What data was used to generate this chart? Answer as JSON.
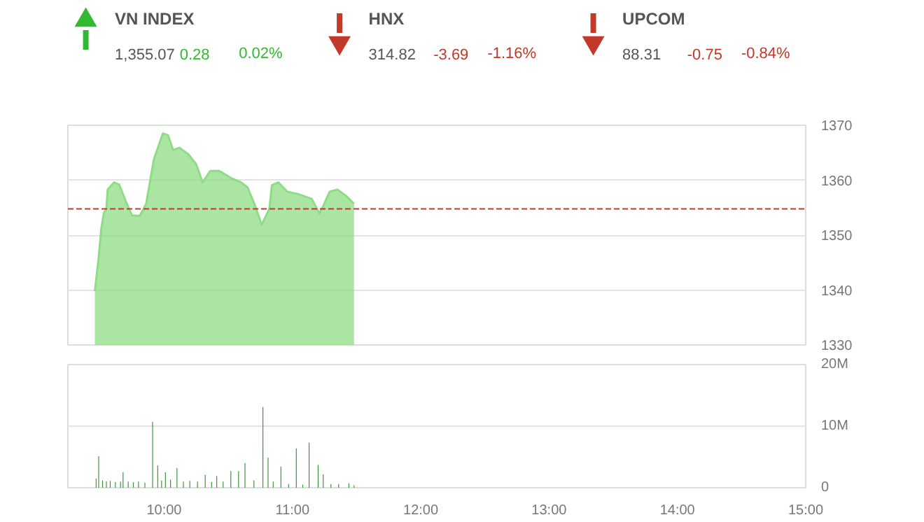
{
  "chart_data": [
    {
      "type": "other",
      "categories": [
        "VN INDEX",
        "HNX",
        "UPCOM"
      ],
      "series": [
        {
          "values": [
            1355.07,
            314.82,
            88.31
          ],
          "value_labels": [
            "1,355.07",
            "314.82",
            "88.31"
          ],
          "color": "#555555"
        },
        {
          "values": [
            0.28,
            -3.69,
            -0.75
          ],
          "value_labels": [
            "0.28",
            "-3.69",
            "-0.75"
          ],
          "colors": [
            "#33b833",
            "#c0392b",
            "#c0392b"
          ]
        },
        {
          "values": [
            0.02,
            -1.16,
            -0.84
          ],
          "value_labels": [
            "0.02%",
            "-1.16%",
            "-0.84%"
          ],
          "colors": [
            "#33b833",
            "#c0392b",
            "#c0392b"
          ]
        }
      ]
    },
    {
      "type": "area",
      "x": [
        9.46,
        9.49,
        9.51,
        9.53,
        9.55,
        9.56,
        9.61,
        9.65,
        9.7,
        9.75,
        9.81,
        9.86,
        9.92,
        9.99,
        10.03,
        10.07,
        10.12,
        10.19,
        10.25,
        10.3,
        10.36,
        10.43,
        10.52,
        10.6,
        10.65,
        10.71,
        10.76,
        10.82,
        10.84,
        10.89,
        10.96,
        11.04,
        11.15,
        11.18,
        11.21,
        11.24,
        11.29,
        11.35,
        11.42,
        11.48
      ],
      "series": [
        {
          "color": "#8fdc86",
          "values": [
            1339.8,
            1346.0,
            1351.1,
            1354.0,
            1354.8,
            1358.3,
            1359.6,
            1359.2,
            1356.2,
            1353.6,
            1353.5,
            1355.7,
            1363.8,
            1368.5,
            1368.2,
            1365.5,
            1365.9,
            1364.7,
            1362.9,
            1359.6,
            1361.7,
            1361.7,
            1360.4,
            1359.6,
            1358.7,
            1355.3,
            1351.9,
            1354.8,
            1359.1,
            1359.6,
            1357.9,
            1357.5,
            1356.6,
            1355.3,
            1354.0,
            1355.3,
            1357.9,
            1358.3,
            1357.1,
            1355.7
          ]
        }
      ],
      "xlim": [
        9.25,
        15
      ],
      "xticks": [
        {
          "value": 10,
          "label": null
        },
        {
          "value": 11,
          "label": null
        },
        {
          "value": 12,
          "label": null
        },
        {
          "value": 13,
          "label": null
        },
        {
          "value": 14,
          "label": null
        },
        {
          "value": 15,
          "label": null
        }
      ],
      "ylim": [
        1330,
        1370
      ],
      "yticks": [
        1330,
        1340,
        1350,
        1360,
        1370
      ],
      "grid": "y",
      "tick_labels": "y",
      "ref_lines": [
        {
          "axis": "y",
          "value": 1354.79,
          "color": "#c0392b",
          "line_style": "dashed"
        }
      ]
    },
    {
      "type": "bar",
      "x": [
        9.47,
        9.49,
        9.52,
        9.55,
        9.58,
        9.62,
        9.66,
        9.68,
        9.72,
        9.76,
        9.8,
        9.85,
        9.91,
        9.95,
        9.98,
        10.01,
        10.05,
        10.1,
        10.15,
        10.2,
        10.26,
        10.32,
        10.37,
        10.41,
        10.46,
        10.52,
        10.58,
        10.63,
        10.7,
        10.77,
        10.81,
        10.85,
        10.91,
        10.97,
        11.03,
        11.08,
        11.13,
        11.2,
        11.24,
        11.3,
        11.36,
        11.44,
        11.48
      ],
      "series": [
        {
          "color": "#2e8b2e",
          "values": [
            1.5,
            5.1,
            1.2,
            1.0,
            1.1,
            0.9,
            1.0,
            2.5,
            1.0,
            0.9,
            1.0,
            0.8,
            10.7,
            3.6,
            1.2,
            2.5,
            1.3,
            3.2,
            1.0,
            1.1,
            1.0,
            2.1,
            0.9,
            1.9,
            1.0,
            2.7,
            2.7,
            4.0,
            1.2,
            13.1,
            4.9,
            1.0,
            3.4,
            0.6,
            6.4,
            0.5,
            7.3,
            3.7,
            2.2,
            0.6,
            0.6,
            0.7,
            0.4
          ]
        }
      ],
      "xlim": [
        9.25,
        15
      ],
      "xticks": [
        {
          "value": 10,
          "label": "10:00"
        },
        {
          "value": 11,
          "label": "11:00"
        },
        {
          "value": 12,
          "label": "12:00"
        },
        {
          "value": 13,
          "label": "13:00"
        },
        {
          "value": 14,
          "label": "14:00"
        },
        {
          "value": 15,
          "label": "15:00"
        }
      ],
      "ylim": [
        0,
        20
      ],
      "yticks": [
        {
          "value": 0,
          "label": "0"
        },
        {
          "value": 10,
          "label": "10M"
        },
        {
          "value": 20,
          "label": "20M"
        }
      ],
      "grid": "y"
    }
  ]
}
